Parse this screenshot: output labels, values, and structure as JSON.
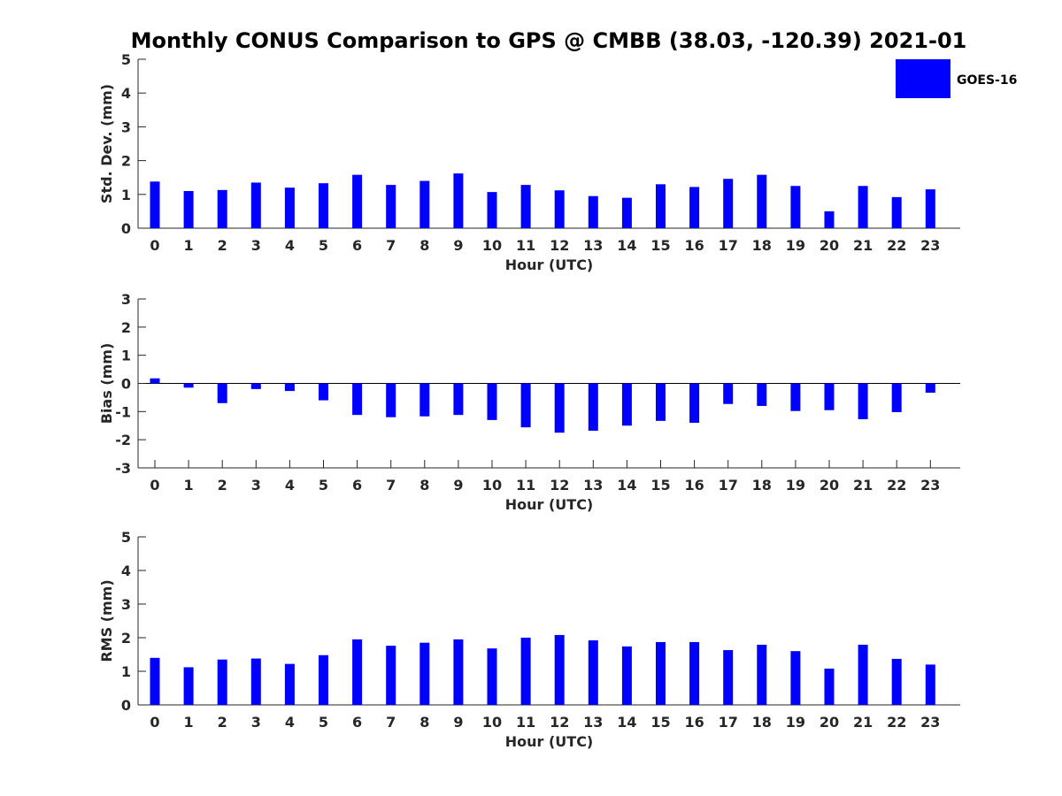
{
  "title": "Monthly CONUS Comparison to GPS @ CMBB (38.03, -120.39) 2021-01",
  "colors": {
    "bar": "#0000ff",
    "axis": "#262626",
    "text": "#262626"
  },
  "legend": {
    "label": "GOES-16",
    "position": "top-right"
  },
  "chart_data": [
    {
      "type": "bar",
      "title": "Monthly CONUS Comparison to GPS @ CMBB (38.03, -120.39) 2021-01",
      "xlabel": "Hour (UTC)",
      "ylabel": "Std. Dev. (mm)",
      "ylim": [
        0,
        5
      ],
      "yticks": [
        "0",
        "1",
        "2",
        "3",
        "4",
        "5"
      ],
      "categories": [
        "0",
        "1",
        "2",
        "3",
        "4",
        "5",
        "6",
        "7",
        "8",
        "9",
        "10",
        "11",
        "12",
        "13",
        "14",
        "15",
        "16",
        "17",
        "18",
        "19",
        "20",
        "21",
        "22",
        "23"
      ],
      "series": [
        {
          "name": "GOES-16",
          "values": [
            1.38,
            1.1,
            1.13,
            1.35,
            1.2,
            1.33,
            1.58,
            1.28,
            1.4,
            1.62,
            1.07,
            1.28,
            1.12,
            0.95,
            0.9,
            1.3,
            1.22,
            1.46,
            1.58,
            1.25,
            0.5,
            1.25,
            0.92,
            1.15
          ]
        }
      ]
    },
    {
      "type": "bar",
      "xlabel": "Hour (UTC)",
      "ylabel": "Bias (mm)",
      "ylim": [
        -3,
        3
      ],
      "yticks": [
        "-3",
        "-2",
        "-1",
        "0",
        "1",
        "2",
        "3"
      ],
      "categories": [
        "0",
        "1",
        "2",
        "3",
        "4",
        "5",
        "6",
        "7",
        "8",
        "9",
        "10",
        "11",
        "12",
        "13",
        "14",
        "15",
        "16",
        "17",
        "18",
        "19",
        "20",
        "21",
        "22",
        "23"
      ],
      "series": [
        {
          "name": "GOES-16",
          "values": [
            0.18,
            -0.15,
            -0.7,
            -0.2,
            -0.27,
            -0.6,
            -1.12,
            -1.2,
            -1.17,
            -1.12,
            -1.3,
            -1.56,
            -1.75,
            -1.68,
            -1.5,
            -1.33,
            -1.4,
            -0.73,
            -0.8,
            -0.98,
            -0.95,
            -1.27,
            -1.02,
            -0.33
          ]
        }
      ]
    },
    {
      "type": "bar",
      "xlabel": "Hour (UTC)",
      "ylabel": "RMS (mm)",
      "ylim": [
        0,
        5
      ],
      "yticks": [
        "0",
        "1",
        "2",
        "3",
        "4",
        "5"
      ],
      "categories": [
        "0",
        "1",
        "2",
        "3",
        "4",
        "5",
        "6",
        "7",
        "8",
        "9",
        "10",
        "11",
        "12",
        "13",
        "14",
        "15",
        "16",
        "17",
        "18",
        "19",
        "20",
        "21",
        "22",
        "23"
      ],
      "series": [
        {
          "name": "GOES-16",
          "values": [
            1.4,
            1.12,
            1.35,
            1.38,
            1.22,
            1.48,
            1.95,
            1.76,
            1.85,
            1.95,
            1.68,
            2.0,
            2.08,
            1.92,
            1.74,
            1.87,
            1.87,
            1.63,
            1.79,
            1.6,
            1.08,
            1.79,
            1.37,
            1.2
          ]
        }
      ]
    }
  ]
}
